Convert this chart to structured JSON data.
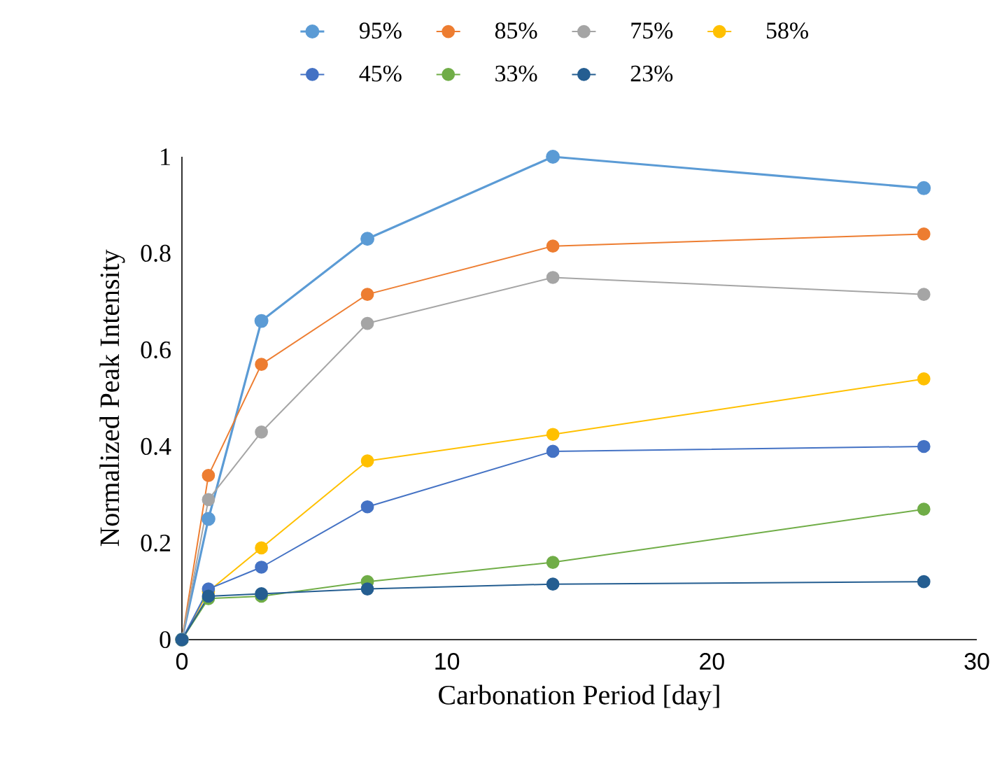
{
  "chart_data": {
    "type": "line",
    "xlabel": "Carbonation Period [day]",
    "ylabel": "Normalized  Peak Intensity",
    "x": [
      0,
      1,
      3,
      7,
      14,
      28
    ],
    "xlim": [
      0,
      30
    ],
    "xticks": [
      0,
      10,
      20,
      30
    ],
    "ylim": [
      0,
      1
    ],
    "yticks": [
      0,
      0.2,
      0.4,
      0.6,
      0.8,
      1
    ],
    "grid": false,
    "legend": "top",
    "marker": "circle",
    "line_style": "solid",
    "series": [
      {
        "name": "95%",
        "color": "#5b9bd5",
        "values": [
          0,
          0.25,
          0.66,
          0.83,
          1.0,
          0.935
        ]
      },
      {
        "name": "85%",
        "color": "#ed7d31",
        "values": [
          0,
          0.34,
          0.57,
          0.715,
          0.815,
          0.84
        ]
      },
      {
        "name": "75%",
        "color": "#a5a5a5",
        "values": [
          0,
          0.29,
          0.43,
          0.655,
          0.75,
          0.715
        ]
      },
      {
        "name": "58%",
        "color": "#ffc000",
        "values": [
          0,
          0.1,
          0.19,
          0.37,
          0.425,
          0.54
        ]
      },
      {
        "name": "45%",
        "color": "#4472c4",
        "values": [
          0,
          0.105,
          0.15,
          0.275,
          0.39,
          0.4
        ]
      },
      {
        "name": "33%",
        "color": "#70ad47",
        "values": [
          0,
          0.085,
          0.09,
          0.12,
          0.16,
          0.27
        ]
      },
      {
        "name": "23%",
        "color": "#255e91",
        "values": [
          0,
          0.09,
          0.095,
          0.105,
          0.115,
          0.12
        ]
      }
    ]
  }
}
